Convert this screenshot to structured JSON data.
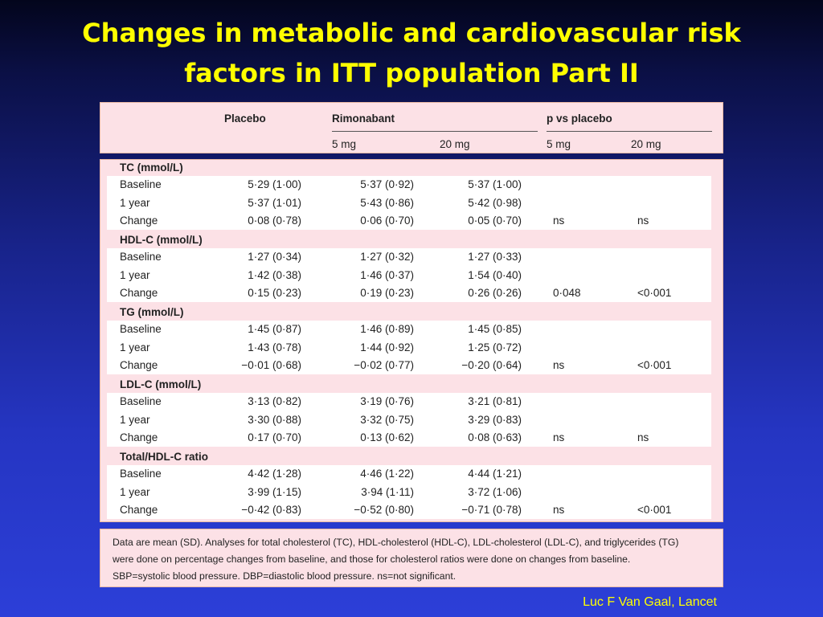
{
  "slide": {
    "title_line1": "Changes in metabolic and cardiovascular risk",
    "title_line2": "factors in ITT population Part II",
    "credit": "Luc F Van Gaal, Lancet"
  },
  "table": {
    "headers": {
      "placebo": "Placebo",
      "rimonabant": "Rimonabant",
      "p_vs_placebo": "p vs placebo",
      "rim_5mg": "5 mg",
      "rim_20mg": "20 mg",
      "p_5mg": "5 mg",
      "p_20mg": "20 mg"
    },
    "groups": [
      {
        "title": "TC (mmol/L)",
        "rows": [
          {
            "label": "Baseline",
            "placebo": "5·29 (1·00)",
            "rim5": "5·37 (0·92)",
            "rim20": "5·37 (1·00)",
            "p5": "",
            "p20": ""
          },
          {
            "label": "1 year",
            "placebo": "5·37 (1·01)",
            "rim5": "5·43 (0·86)",
            "rim20": "5·42 (0·98)",
            "p5": "",
            "p20": ""
          },
          {
            "label": "Change",
            "placebo": "0·08 (0·78)",
            "rim5": "0·06 (0·70)",
            "rim20": "0·05 (0·70)",
            "p5": "ns",
            "p20": "ns"
          }
        ]
      },
      {
        "title": "HDL-C (mmol/L)",
        "rows": [
          {
            "label": "Baseline",
            "placebo": "1·27 (0·34)",
            "rim5": "1·27 (0·32)",
            "rim20": "1·27 (0·33)",
            "p5": "",
            "p20": ""
          },
          {
            "label": "1 year",
            "placebo": "1·42 (0·38)",
            "rim5": "1·46 (0·37)",
            "rim20": "1·54 (0·40)",
            "p5": "",
            "p20": ""
          },
          {
            "label": "Change",
            "placebo": "0·15 (0·23)",
            "rim5": "0·19 (0·23)",
            "rim20": "0·26 (0·26)",
            "p5": "0·048",
            "p20": "<0·001"
          }
        ]
      },
      {
        "title": "TG (mmol/L)",
        "rows": [
          {
            "label": "Baseline",
            "placebo": "1·45 (0·87)",
            "rim5": "1·46 (0·89)",
            "rim20": "1·45 (0·85)",
            "p5": "",
            "p20": ""
          },
          {
            "label": "1 year",
            "placebo": "1·43 (0·78)",
            "rim5": "1·44 (0·92)",
            "rim20": "1·25 (0·72)",
            "p5": "",
            "p20": ""
          },
          {
            "label": "Change",
            "placebo": "−0·01 (0·68)",
            "rim5": "−0·02 (0·77)",
            "rim20": "−0·20 (0·64)",
            "p5": "ns",
            "p20": "<0·001"
          }
        ]
      },
      {
        "title": "LDL-C (mmol/L)",
        "rows": [
          {
            "label": "Baseline",
            "placebo": "3·13 (0·82)",
            "rim5": "3·19 (0·76)",
            "rim20": "3·21 (0·81)",
            "p5": "",
            "p20": ""
          },
          {
            "label": "1 year",
            "placebo": "3·30 (0·88)",
            "rim5": "3·32 (0·75)",
            "rim20": "3·29 (0·83)",
            "p5": "",
            "p20": ""
          },
          {
            "label": "Change",
            "placebo": "0·17 (0·70)",
            "rim5": "0·13 (0·62)",
            "rim20": "0·08 (0·63)",
            "p5": "ns",
            "p20": "ns"
          }
        ]
      },
      {
        "title": "Total/HDL-C ratio",
        "rows": [
          {
            "label": "Baseline",
            "placebo": "4·42 (1·28)",
            "rim5": "4·46 (1·22)",
            "rim20": "4·44 (1·21)",
            "p5": "",
            "p20": ""
          },
          {
            "label": "1 year",
            "placebo": "3·99 (1·15)",
            "rim5": "3·94 (1·11)",
            "rim20": "3·72 (1·06)",
            "p5": "",
            "p20": ""
          },
          {
            "label": "Change",
            "placebo": "−0·42 (0·83)",
            "rim5": "−0·52 (0·80)",
            "rim20": "−0·71 (0·78)",
            "p5": "ns",
            "p20": "<0·001"
          }
        ]
      }
    ]
  },
  "footnote": {
    "line1": "Data are mean (SD). Analyses for total cholesterol (TC), HDL-cholesterol (HDL-C), LDL-cholesterol (LDL-C), and triglycerides (TG)",
    "line2": "were done on percentage changes from baseline, and those for cholesterol ratios were done on changes from baseline.",
    "line3": "SBP=systolic blood pressure. DBP=diastolic blood pressure. ns=not significant."
  }
}
